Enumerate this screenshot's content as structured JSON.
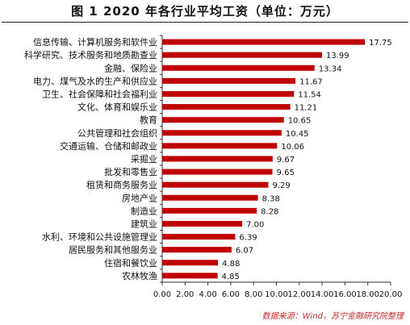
{
  "title": "图 1  2020 年各行业平均工资（单位：万元）",
  "source": "数据来源：Wind，苏宁金融研究院整理",
  "chart_data": {
    "type": "bar",
    "orientation": "horizontal",
    "title": "图 1  2020 年各行业平均工资（单位：万元）",
    "xlabel": "",
    "ylabel": "",
    "xlim": [
      0,
      20
    ],
    "xticks": [
      "0.00",
      "2.00",
      "4.00",
      "6.00",
      "8.00",
      "10.00",
      "12.00",
      "14.00",
      "16.00",
      "18.00",
      "20.00"
    ],
    "grid": false,
    "legend": "none",
    "bar_color": "#c00000",
    "categories": [
      "信息传输、计算机服务和软件业",
      "科学研究、技术服务和地质勘查业",
      "金融、保险业",
      "电力、煤气及水的生产和供应业",
      "卫生、社会保障和社会福利业",
      "文化、体育和娱乐业",
      "教育",
      "公共管理和社会组织",
      "交通运输、仓储和邮政业",
      "采掘业",
      "批发和零售业",
      "租赁和商务服务业",
      "房地产业",
      "制造业",
      "建筑业",
      "水利、环境和公共设施管理业",
      "居民服务和其他服务业",
      "住宿和餐饮业",
      "农林牧渔"
    ],
    "values": [
      17.75,
      13.99,
      13.34,
      11.67,
      11.54,
      11.21,
      10.65,
      10.45,
      10.06,
      9.67,
      9.65,
      9.29,
      8.38,
      8.28,
      7.0,
      6.39,
      6.07,
      4.88,
      4.85
    ],
    "value_labels": [
      "17.75",
      "13.99",
      "13.34",
      "11.67",
      "11.54",
      "11.21",
      "10.65",
      "10.45",
      "10.06",
      "9.67",
      "9.65",
      "9.29",
      "8.38",
      "8.28",
      "7.00",
      "6.39",
      "6.07",
      "4.88",
      "4.85"
    ]
  }
}
